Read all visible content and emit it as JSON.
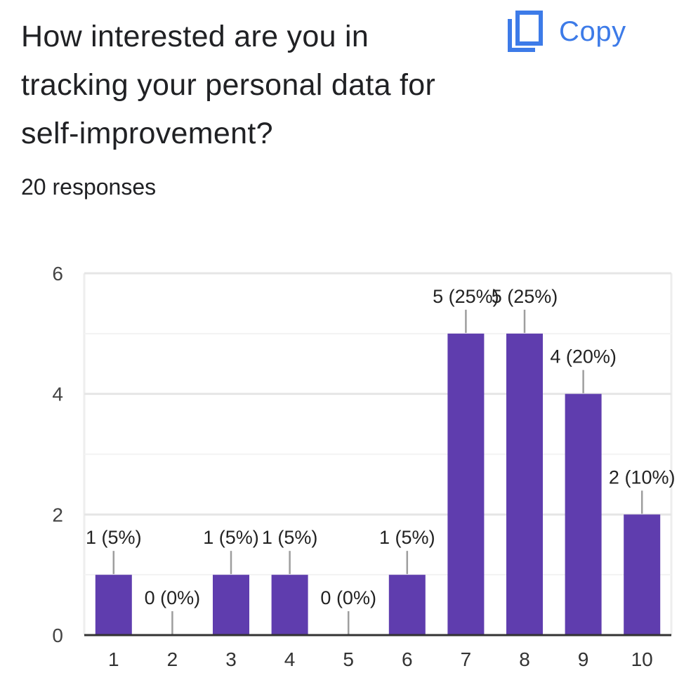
{
  "question": {
    "title": "How interested are you in tracking your personal data for self-improvement?",
    "responses": "20 responses"
  },
  "toolbar": {
    "copy_label": "Copy",
    "copy_icon": "copy-icon"
  },
  "colors": {
    "bar": "#5f3dae",
    "accent": "#3d7be8",
    "grid": "#eeeeee",
    "axis": "#333333"
  },
  "chart_data": {
    "type": "bar",
    "categories": [
      "1",
      "2",
      "3",
      "4",
      "5",
      "6",
      "7",
      "8",
      "9",
      "10"
    ],
    "values": [
      1,
      0,
      1,
      1,
      0,
      1,
      5,
      5,
      4,
      2
    ],
    "data_labels": [
      "1 (5%)",
      "0 (0%)",
      "1 (5%)",
      "1 (5%)",
      "0 (0%)",
      "1 (5%)",
      "5 (25%)",
      "5 (25%)",
      "4 (20%)",
      "2 (10%)"
    ],
    "yticks": [
      0,
      2,
      4,
      6
    ],
    "ylim": [
      0,
      6
    ],
    "grid": true,
    "legend": "none"
  }
}
